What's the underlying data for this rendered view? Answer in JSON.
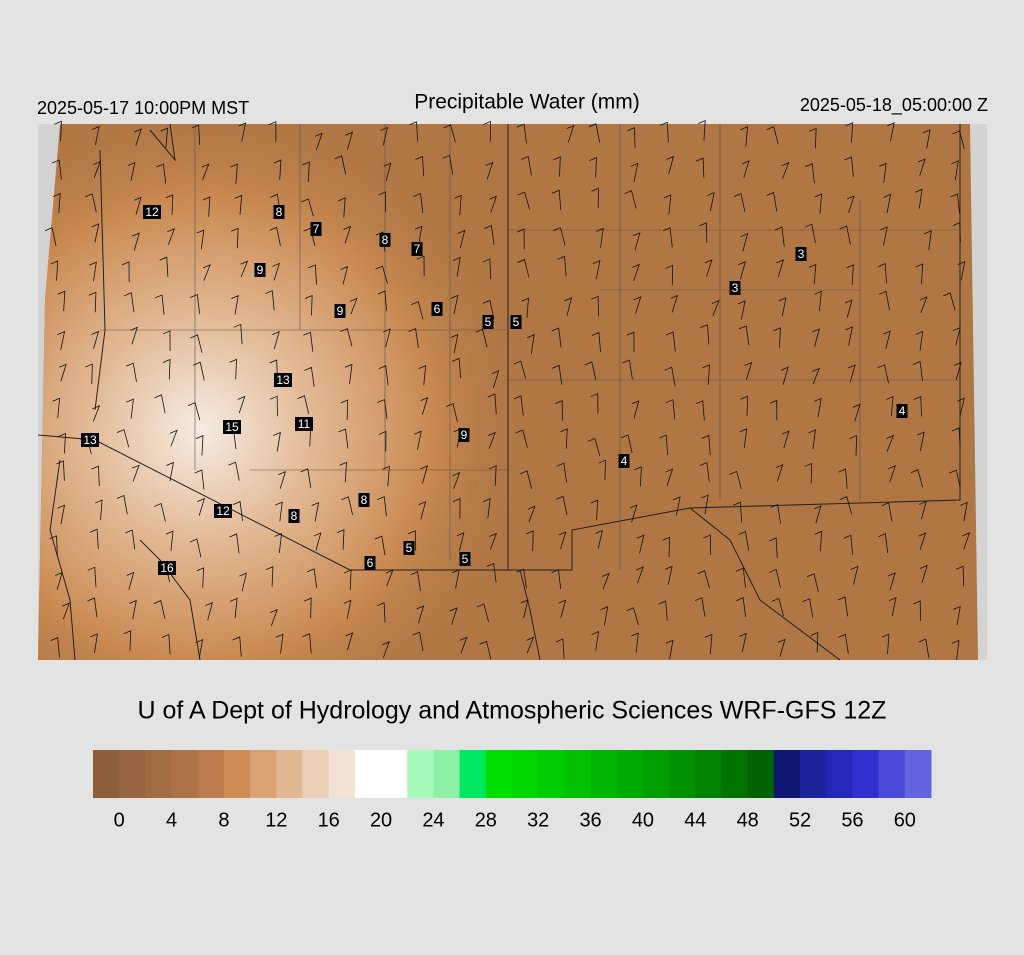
{
  "header": {
    "left": "2025-05-17 10:00PM MST",
    "title": "Precipitable Water (mm)",
    "right": "2025-05-18_05:00:00 Z"
  },
  "map_labels": [
    "12",
    "8",
    "7",
    "8",
    "7",
    "9",
    "9",
    "6",
    "5",
    "5",
    "3",
    "3",
    "13",
    "11",
    "15",
    "13",
    "9",
    "4",
    "4",
    "8",
    "12",
    "8",
    "5",
    "6",
    "5",
    "16"
  ],
  "credit": "U of A Dept of Hydrology and Atmospheric Sciences WRF-GFS 12Z",
  "colorbar": {
    "lim": [
      -2,
      62
    ],
    "ticks": [
      0,
      4,
      8,
      12,
      16,
      20,
      24,
      28,
      32,
      36,
      40,
      44,
      48,
      52,
      56,
      60
    ],
    "colors": [
      "#8b5d38",
      "#976540",
      "#a26c43",
      "#ad7347",
      "#b97b4b",
      "#cd8c53",
      "#d9a273",
      "#e2b893",
      "#ebd0b8",
      "#f3e3d6",
      "#ffffff",
      "#ffffff",
      "#a6f7b8",
      "#8ef0a6",
      "#00e861",
      "#00e000",
      "#00d600",
      "#00cc00",
      "#00c200",
      "#00b700",
      "#00ab00",
      "#009e00",
      "#009000",
      "#008200",
      "#007200",
      "#006200",
      "#0d1670",
      "#1a239a",
      "#2328b8",
      "#3030d0",
      "#4a4ad8",
      "#6464e0"
    ]
  }
}
